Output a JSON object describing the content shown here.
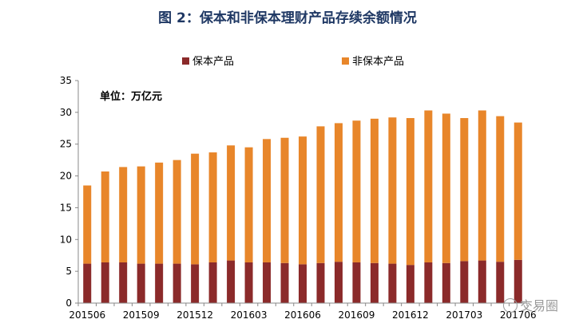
{
  "chart_data": {
    "type": "bar",
    "stacked": true,
    "title": "图 2：保本和非保本理财产品存续余额情况",
    "unit_label": "单位：万亿元",
    "xlabel": "",
    "ylabel": "",
    "ylim": [
      0,
      35
    ],
    "yticks": [
      0,
      5,
      10,
      15,
      20,
      25,
      30,
      35
    ],
    "legend_position": "top",
    "categories": [
      "201506",
      "201507",
      "201508",
      "201509",
      "201510",
      "201511",
      "201512",
      "201601",
      "201602",
      "201603",
      "201604",
      "201605",
      "201606",
      "201607",
      "201608",
      "201609",
      "201610",
      "201611",
      "201612",
      "201701",
      "201702",
      "201703",
      "201704",
      "201705",
      "201706"
    ],
    "tick_labels": [
      "201506",
      "201509",
      "201512",
      "201603",
      "201606",
      "201609",
      "201612",
      "201703",
      "201706"
    ],
    "series": [
      {
        "name": "保本产品",
        "color": "#8b2a2a",
        "values": [
          6.2,
          6.4,
          6.4,
          6.2,
          6.2,
          6.2,
          6.1,
          6.4,
          6.7,
          6.4,
          6.4,
          6.3,
          6.1,
          6.3,
          6.5,
          6.4,
          6.3,
          6.2,
          6.0,
          6.4,
          6.3,
          6.6,
          6.7,
          6.5,
          6.8
        ]
      },
      {
        "name": "非保本产品",
        "color": "#e8862a",
        "values": [
          12.3,
          14.3,
          15.0,
          15.3,
          15.9,
          16.3,
          17.4,
          17.3,
          18.1,
          18.1,
          19.4,
          19.7,
          20.1,
          21.5,
          21.8,
          22.3,
          22.7,
          23.0,
          23.1,
          23.9,
          23.5,
          22.5,
          23.6,
          22.9,
          21.6
        ]
      }
    ]
  },
  "watermark": {
    "text": "交易圈",
    "icon": "circle-logo-icon"
  }
}
